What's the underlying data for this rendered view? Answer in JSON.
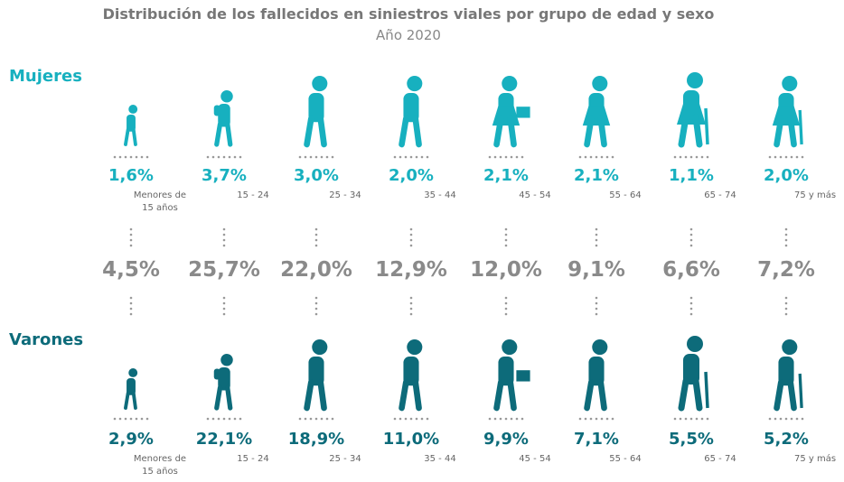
{
  "header": {
    "title": "Distribución de los fallecidos en siniestros viales por grupo de edad y sexo",
    "subtitle": "Año 2020"
  },
  "women_label": "Mujeres",
  "men_label": "Varones",
  "groups": [
    {
      "age": "Menores de 15 años",
      "women": "1,6%",
      "total": "4,5%",
      "men": "2,9%"
    },
    {
      "age": "15 - 24",
      "women": "3,7%",
      "total": "25,7%",
      "men": "22,1%"
    },
    {
      "age": "25 - 34",
      "women": "3,0%",
      "total": "22,0%",
      "men": "18,9%"
    },
    {
      "age": "35 - 44",
      "women": "2,0%",
      "total": "12,9%",
      "men": "11,0%"
    },
    {
      "age": "45 - 54",
      "women": "2,1%",
      "total": "12,0%",
      "men": "9,9%"
    },
    {
      "age": "55 - 64",
      "women": "2,1%",
      "total": "9,1%",
      "men": "7,1%"
    },
    {
      "age": "65 - 74",
      "women": "1,1%",
      "total": "6,6%",
      "men": "5,5%"
    },
    {
      "age": "75 y más",
      "women": "2,0%",
      "total": "7,2%",
      "men": "5,2%"
    }
  ]
}
